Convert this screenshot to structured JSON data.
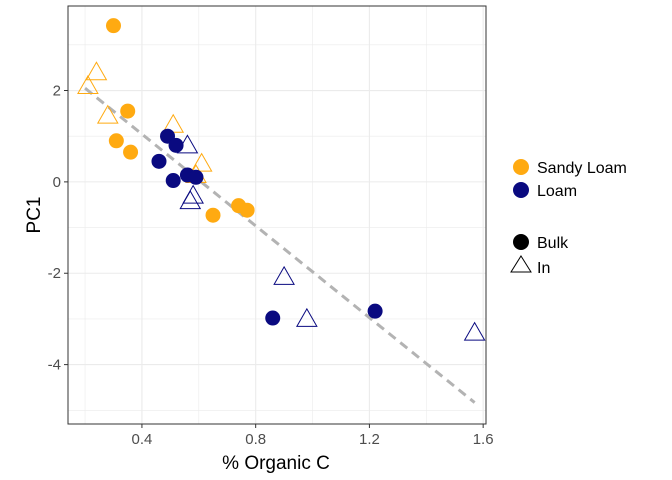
{
  "chart_data": {
    "type": "scatter",
    "xlabel": "% Organic C",
    "ylabel": "PC1",
    "xlim": [
      0.14,
      1.61
    ],
    "ylim": [
      -5.3,
      3.85
    ],
    "x_ticks": [
      0.4,
      0.8,
      1.2,
      1.6
    ],
    "x_tick_labels": [
      "0.4",
      "0.8",
      "1.2",
      "1.6"
    ],
    "y_ticks": [
      -4,
      -2,
      0,
      2
    ],
    "y_tick_labels": [
      "-4",
      "-2",
      "0",
      "2"
    ],
    "grid": true,
    "legend_position": "right",
    "colors": {
      "Sandy Loam": "#FFAA11",
      "Loam": "#0A0A80",
      "trend": "#B3B3B3",
      "panel_border": "#333333",
      "grid": "#EBEBEB"
    },
    "color_legend": [
      "Sandy Loam",
      "Loam"
    ],
    "shape_legend": [
      "Bulk",
      "In"
    ],
    "series": [
      {
        "soil": "Sandy Loam",
        "fraction": "Bulk",
        "marker": "circle",
        "x": [
          0.3,
          0.31,
          0.35,
          0.36,
          0.74,
          0.77,
          0.65
        ],
        "y": [
          3.42,
          0.9,
          1.55,
          0.65,
          -0.52,
          -0.62,
          -0.73
        ]
      },
      {
        "soil": "Sandy Loam",
        "fraction": "In",
        "marker": "triangle",
        "x": [
          0.21,
          0.24,
          0.28,
          0.51,
          0.61,
          0.59
        ],
        "y": [
          2.1,
          2.4,
          1.45,
          1.25,
          0.4,
          0.15
        ]
      },
      {
        "soil": "Loam",
        "fraction": "Bulk",
        "marker": "circle",
        "x": [
          0.49,
          0.52,
          0.46,
          0.56,
          0.59,
          0.51,
          0.86,
          1.22
        ],
        "y": [
          1.0,
          0.8,
          0.45,
          0.15,
          0.1,
          0.03,
          -2.98,
          -2.83
        ]
      },
      {
        "soil": "Loam",
        "fraction": "In",
        "marker": "triangle",
        "x": [
          0.56,
          0.58,
          0.57,
          0.9,
          0.98,
          1.57
        ],
        "y": [
          0.8,
          -0.3,
          -0.42,
          -2.08,
          -3.0,
          -3.3
        ]
      }
    ],
    "trendline": {
      "style": "dashed",
      "x": [
        0.2,
        1.57
      ],
      "y": [
        2.05,
        -4.83
      ]
    }
  }
}
